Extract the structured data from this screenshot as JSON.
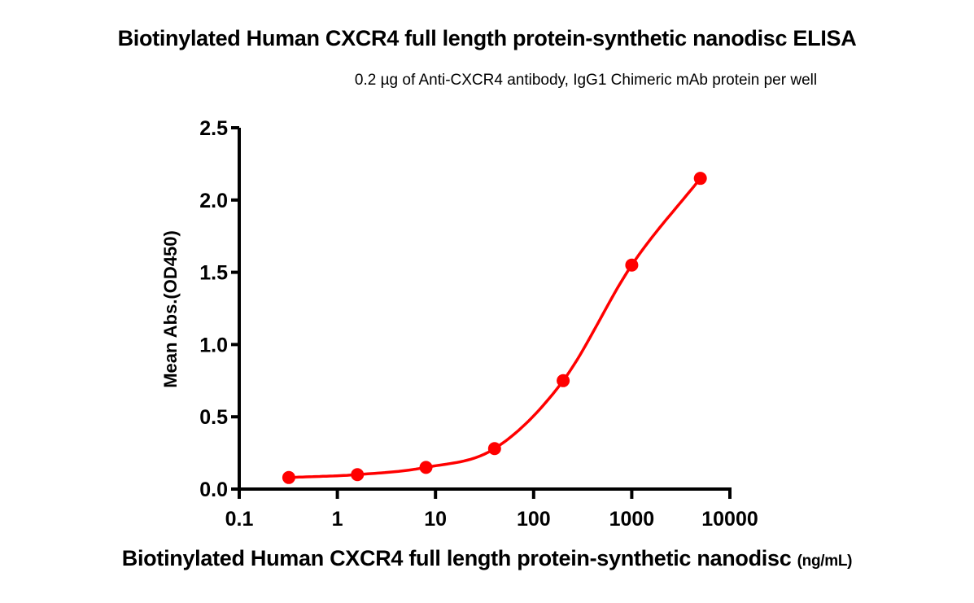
{
  "chart": {
    "title": "Biotinylated Human CXCR4 full length protein-synthetic nanodisc ELISA",
    "subtitle": "0.2 µg of Anti-CXCR4 antibody, IgG1 Chimeric mAb protein per well",
    "xlabel_main": "Biotinylated Human CXCR4 full length protein-synthetic nanodisc",
    "xlabel_unit": "(ng/mL)",
    "ylabel": "Mean Abs.(OD450)"
  },
  "chart_data": {
    "type": "scatter",
    "title": "Biotinylated Human CXCR4 full length protein-synthetic nanodisc ELISA",
    "subtitle": "0.2 µg of Anti-CXCR4 antibody, IgG1 Chimeric mAb protein per well",
    "xlabel": "Biotinylated Human CXCR4 full length protein-synthetic nanodisc (ng/mL)",
    "ylabel": "Mean Abs.(OD450)",
    "xscale": "log",
    "xlim": [
      0.1,
      10000
    ],
    "ylim": [
      0,
      2.5
    ],
    "xticks": [
      "0.1",
      "1",
      "10",
      "100",
      "1000",
      "10000"
    ],
    "yticks": [
      "0.0",
      "0.5",
      "1.0",
      "1.5",
      "2.0",
      "2.5"
    ],
    "grid": false,
    "legend": null,
    "series": [
      {
        "name": "OD450",
        "color": "#ff0000",
        "marker": "circle",
        "fit": "4PL sigmoidal curve",
        "x": [
          0.32,
          1.6,
          8,
          40,
          200,
          1000,
          5000
        ],
        "y": [
          0.08,
          0.1,
          0.15,
          0.28,
          0.75,
          1.55,
          2.15
        ]
      }
    ]
  }
}
